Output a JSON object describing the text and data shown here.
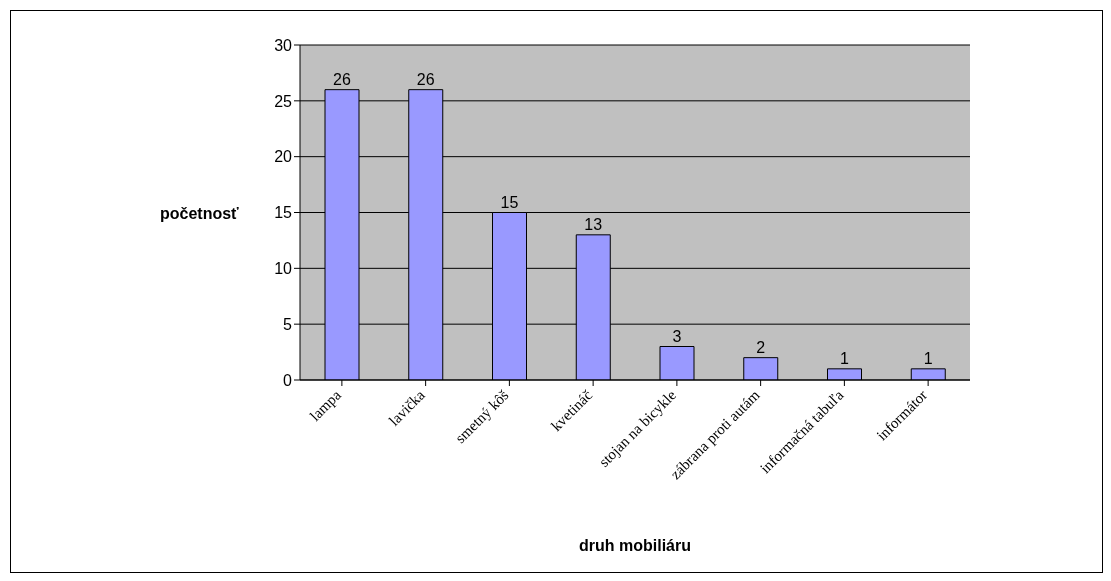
{
  "chart_data": {
    "type": "bar",
    "xlabel": "druh mobiliáru",
    "ylabel": "početnosť",
    "categories": [
      "lampa",
      "lavička",
      "smetný kôš",
      "kvetináč",
      "stojan na bicykle",
      "zábrana proti autám",
      "informačná tabuľa",
      "informátor"
    ],
    "values": [
      26,
      26,
      15,
      13,
      3,
      2,
      1,
      1
    ],
    "color": "#9999ff",
    "ylim": [
      0,
      30
    ],
    "yticks": [
      0,
      5,
      10,
      15,
      20,
      25,
      30
    ],
    "grid": "y",
    "data_labels": true
  }
}
